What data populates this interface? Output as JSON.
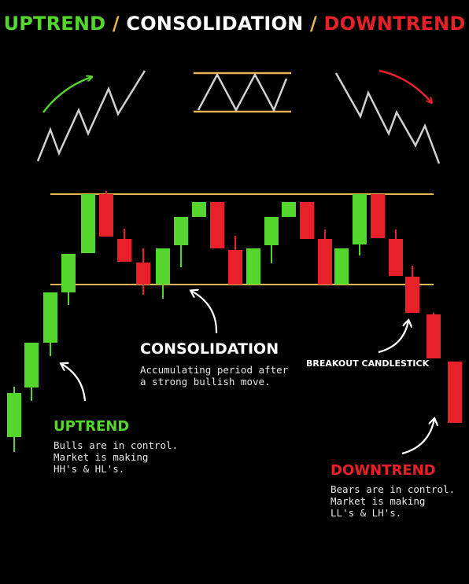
{
  "title": {
    "part_uptrend": "UPTREND",
    "separator_1": " / ",
    "part_consolidation": "CONSOLIDATION",
    "separator_2": " / ",
    "part_downtrend": "DOWNTREND"
  },
  "labels": {
    "uptrend": {
      "heading": "UPTREND",
      "description": "Bulls are in control.\nMarket is making\nHH's & HL's."
    },
    "consolidation": {
      "heading": "CONSOLIDATION",
      "description": "Accumulating period after\na strong bullish move."
    },
    "breakout": {
      "heading": "BREAKOUT CANDLESTICK"
    },
    "downtrend": {
      "heading": "DOWNTREND",
      "description": "Bears are in control.\nMarket is making\nLL's & LH's."
    }
  },
  "colors": {
    "bullish": "#54D62C",
    "bearish": "#E8202A",
    "range_line": "#E6B450",
    "zigzag": "#D0D0D0",
    "annotation_arrow": "#FFFFFF",
    "background": "#000000"
  },
  "candles": [
    {
      "dir": "up"
    },
    {
      "dir": "up"
    },
    {
      "dir": "up"
    },
    {
      "dir": "up"
    },
    {
      "dir": "up"
    },
    {
      "dir": "down"
    },
    {
      "dir": "down"
    },
    {
      "dir": "down"
    },
    {
      "dir": "up"
    },
    {
      "dir": "up"
    },
    {
      "dir": "up"
    },
    {
      "dir": "down"
    },
    {
      "dir": "down"
    },
    {
      "dir": "up"
    },
    {
      "dir": "up"
    },
    {
      "dir": "up"
    },
    {
      "dir": "down"
    },
    {
      "dir": "down"
    },
    {
      "dir": "up"
    },
    {
      "dir": "up"
    },
    {
      "dir": "down"
    },
    {
      "dir": "down"
    },
    {
      "dir": "down"
    },
    {
      "dir": "down"
    },
    {
      "dir": "down"
    }
  ]
}
